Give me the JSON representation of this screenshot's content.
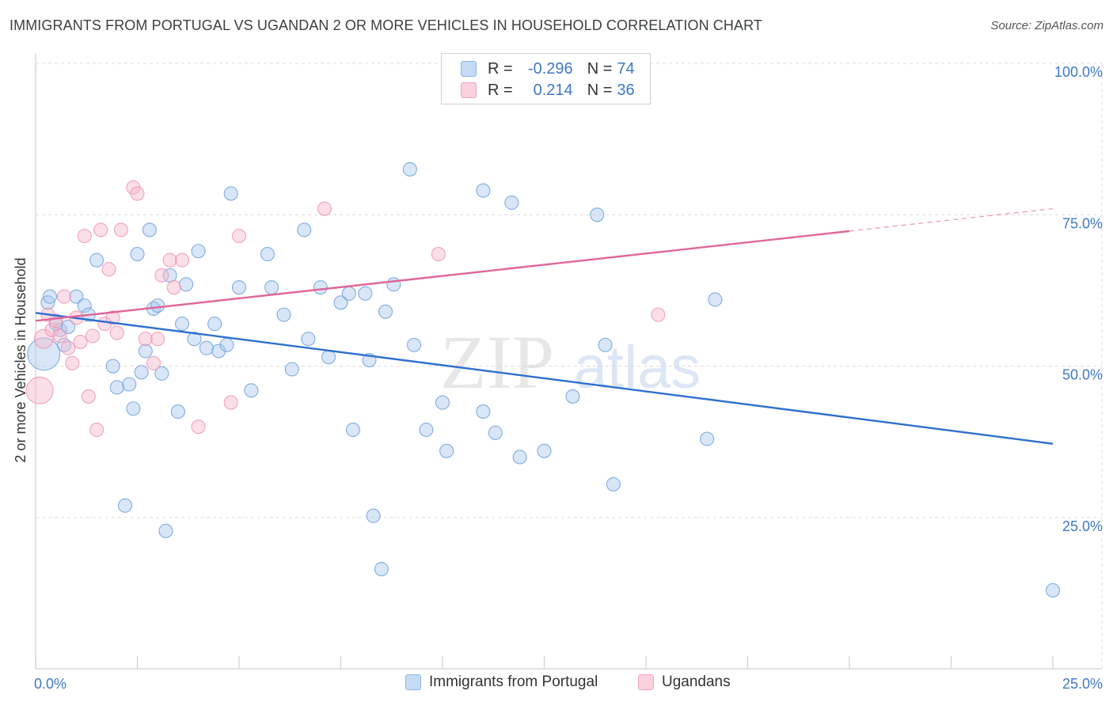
{
  "title": "IMMIGRANTS FROM PORTUGAL VS UGANDAN 2 OR MORE VEHICLES IN HOUSEHOLD CORRELATION CHART",
  "source": "Source: ZipAtlas.com",
  "watermark": {
    "zip": "ZIP",
    "atlas": "atlas"
  },
  "legend": {
    "rows": [
      {
        "r_label": "R =",
        "r_value": "-0.296",
        "n_label": "N =",
        "n_value": "74",
        "color": "#a8c8f0"
      },
      {
        "r_label": "R =",
        "r_value": "0.214",
        "n_label": "N =",
        "n_value": "36",
        "color": "#f6b8cc"
      }
    ]
  },
  "bottom_legend": [
    {
      "label": "Immigrants from Portugal",
      "color": "#a8c8f0"
    },
    {
      "label": "Ugandans",
      "color": "#f6b8cc"
    }
  ],
  "chart_data": {
    "type": "scatter",
    "title": "IMMIGRANTS FROM PORTUGAL VS UGANDAN 2 OR MORE VEHICLES IN HOUSEHOLD CORRELATION CHART",
    "xlabel": "",
    "ylabel": "2 or more Vehicles in Household",
    "xlim": [
      0,
      25
    ],
    "ylim": [
      0,
      105
    ],
    "x_tick_labels": [
      "0.0%",
      "25.0%"
    ],
    "y_tick_labels": [
      "25.0%",
      "50.0%",
      "75.0%",
      "100.0%"
    ],
    "y_ticks": [
      25,
      50,
      75,
      100
    ],
    "grid": true,
    "legend_position": "top-center",
    "series": [
      {
        "name": "Immigrants from Portugal",
        "color": "#6fa0dc",
        "fill": "#a8c8f0",
        "trend": {
          "x": [
            0,
            25
          ],
          "y": [
            58.8,
            37.2
          ],
          "color": "#2e6fd0"
        },
        "points": [
          [
            0.2,
            52.0,
            2.4
          ],
          [
            0.3,
            60.5,
            1
          ],
          [
            0.35,
            61.5,
            1
          ],
          [
            0.5,
            57.0,
            1
          ],
          [
            0.6,
            56.0,
            1
          ],
          [
            0.7,
            53.5,
            1
          ],
          [
            0.8,
            56.5,
            1
          ],
          [
            1.0,
            61.5,
            1
          ],
          [
            1.2,
            60.0,
            1
          ],
          [
            1.3,
            58.5,
            1
          ],
          [
            1.5,
            67.5,
            1
          ],
          [
            1.9,
            50.0,
            1
          ],
          [
            2.0,
            46.5,
            1
          ],
          [
            2.2,
            27.0,
            1
          ],
          [
            2.3,
            47.0,
            1
          ],
          [
            2.4,
            43.0,
            1
          ],
          [
            2.5,
            68.5,
            1
          ],
          [
            2.6,
            49.0,
            1
          ],
          [
            2.7,
            52.5,
            1
          ],
          [
            2.8,
            72.5,
            1
          ],
          [
            2.9,
            59.5,
            1
          ],
          [
            3.0,
            60.0,
            1
          ],
          [
            3.1,
            48.8,
            1
          ],
          [
            3.2,
            22.8,
            1
          ],
          [
            3.3,
            65.0,
            1
          ],
          [
            3.5,
            42.5,
            1
          ],
          [
            3.6,
            57.0,
            1
          ],
          [
            3.7,
            63.5,
            1
          ],
          [
            3.9,
            54.5,
            1
          ],
          [
            4.0,
            69.0,
            1
          ],
          [
            4.2,
            53.0,
            1
          ],
          [
            4.4,
            57.0,
            1
          ],
          [
            4.5,
            52.5,
            1
          ],
          [
            4.7,
            53.5,
            1
          ],
          [
            4.8,
            78.5,
            1
          ],
          [
            5.0,
            63.0,
            1
          ],
          [
            5.3,
            46.0,
            1
          ],
          [
            5.7,
            68.5,
            1
          ],
          [
            5.8,
            63.0,
            1
          ],
          [
            6.1,
            58.5,
            1
          ],
          [
            6.3,
            49.5,
            1
          ],
          [
            6.6,
            72.5,
            1
          ],
          [
            6.7,
            54.5,
            1
          ],
          [
            7.0,
            63.0,
            1
          ],
          [
            7.2,
            51.5,
            1
          ],
          [
            7.5,
            60.5,
            1
          ],
          [
            7.7,
            62.0,
            1
          ],
          [
            7.8,
            39.5,
            1
          ],
          [
            8.1,
            62.0,
            1
          ],
          [
            8.2,
            51.0,
            1
          ],
          [
            8.3,
            25.3,
            1
          ],
          [
            8.5,
            16.5,
            1
          ],
          [
            8.6,
            59.0,
            1
          ],
          [
            8.8,
            63.5,
            1
          ],
          [
            9.2,
            82.5,
            1
          ],
          [
            9.3,
            53.5,
            1
          ],
          [
            9.6,
            39.5,
            1
          ],
          [
            10.0,
            44.0,
            1
          ],
          [
            10.1,
            36.0,
            1
          ],
          [
            11.0,
            79.0,
            1
          ],
          [
            11.0,
            42.5,
            1
          ],
          [
            11.3,
            39.0,
            1
          ],
          [
            11.7,
            77.0,
            1
          ],
          [
            11.9,
            35.0,
            1
          ],
          [
            12.5,
            36.0,
            1
          ],
          [
            13.2,
            45.0,
            1
          ],
          [
            13.8,
            75.0,
            1
          ],
          [
            14.0,
            53.5,
            1
          ],
          [
            14.2,
            30.5,
            1
          ],
          [
            16.5,
            38.0,
            1
          ],
          [
            16.7,
            61.0,
            1
          ],
          [
            25.0,
            13.0,
            1
          ]
        ]
      },
      {
        "name": "Ugandans",
        "color": "#ee94b2",
        "fill": "#f6b8cc",
        "trend": {
          "x": [
            0,
            20
          ],
          "y": [
            57.5,
            72.3
          ],
          "color": "#e0679a",
          "dashed_extension_to": [
            25,
            76.0
          ]
        },
        "points": [
          [
            0.1,
            46.0,
            2.0
          ],
          [
            0.2,
            54.5,
            1.4
          ],
          [
            0.3,
            58.5,
            1
          ],
          [
            0.4,
            56.0,
            1
          ],
          [
            0.5,
            57.5,
            1
          ],
          [
            0.6,
            55.0,
            1
          ],
          [
            0.7,
            61.5,
            1
          ],
          [
            0.8,
            53.0,
            1
          ],
          [
            0.9,
            50.5,
            1
          ],
          [
            1.0,
            58.0,
            1
          ],
          [
            1.1,
            54.0,
            1
          ],
          [
            1.2,
            71.5,
            1
          ],
          [
            1.3,
            45.0,
            1
          ],
          [
            1.4,
            55.0,
            1
          ],
          [
            1.5,
            39.5,
            1
          ],
          [
            1.6,
            72.5,
            1
          ],
          [
            1.7,
            57.0,
            1
          ],
          [
            1.8,
            66.0,
            1
          ],
          [
            1.9,
            58.0,
            1
          ],
          [
            2.0,
            55.5,
            1
          ],
          [
            2.1,
            72.5,
            1
          ],
          [
            2.4,
            79.5,
            1
          ],
          [
            2.5,
            78.5,
            1
          ],
          [
            2.7,
            54.5,
            1
          ],
          [
            2.9,
            50.5,
            1
          ],
          [
            3.0,
            54.5,
            1
          ],
          [
            3.1,
            65.0,
            1
          ],
          [
            3.3,
            67.5,
            1
          ],
          [
            3.4,
            63.0,
            1
          ],
          [
            3.6,
            67.5,
            1
          ],
          [
            4.0,
            40.0,
            1
          ],
          [
            4.8,
            44.0,
            1
          ],
          [
            5.0,
            71.5,
            1
          ],
          [
            7.1,
            76.0,
            1
          ],
          [
            9.9,
            68.5,
            1
          ],
          [
            15.3,
            58.5,
            1
          ]
        ]
      }
    ]
  }
}
